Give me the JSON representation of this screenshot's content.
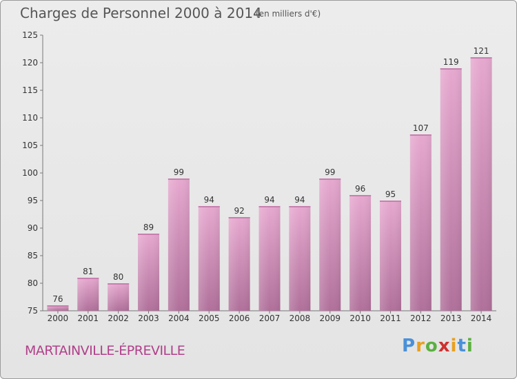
{
  "header": {
    "title": "Charges de Personnel 2000 à 2014",
    "unit": "(en milliers d'€)"
  },
  "footer": {
    "commune": "MARTAINVILLE-ÉPREVILLE",
    "logo": "Proxiti"
  },
  "colors": {
    "bar_light": "#e6a8cf",
    "bar_dark": "#b0709a",
    "commune_text": "#b0408a"
  },
  "chart_data": {
    "type": "bar",
    "title": "Charges de Personnel 2000 à 2014",
    "subtitle": "(en milliers d'€)",
    "categories": [
      "2000",
      "2001",
      "2002",
      "2003",
      "2004",
      "2005",
      "2006",
      "2007",
      "2008",
      "2009",
      "2010",
      "2011",
      "2012",
      "2013",
      "2014"
    ],
    "values": [
      76,
      81,
      80,
      89,
      99,
      94,
      92,
      94,
      94,
      99,
      96,
      95,
      107,
      119,
      121
    ],
    "ylim": [
      75,
      125
    ],
    "yticks": [
      75,
      80,
      85,
      90,
      95,
      100,
      105,
      110,
      115,
      120,
      125
    ],
    "grid": false,
    "xlabel": "",
    "ylabel": ""
  }
}
